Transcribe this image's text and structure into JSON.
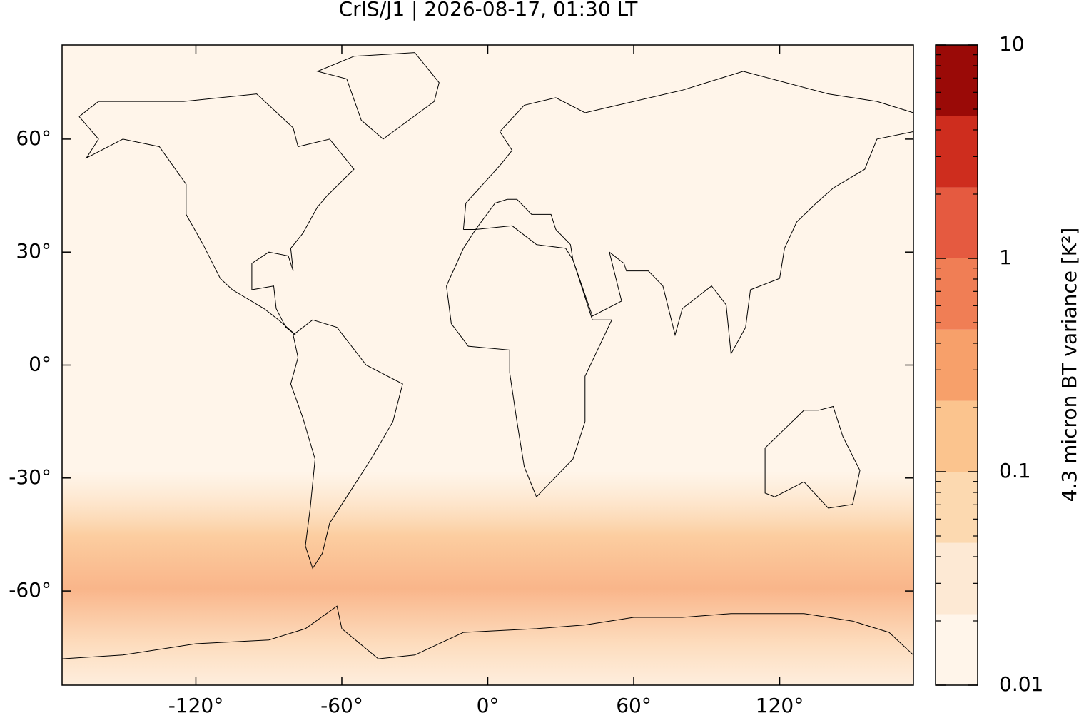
{
  "chart_data": {
    "type": "map",
    "title": "CrIS/J1 | 2026-08-17, 01:30 LT",
    "xlim": [
      -175,
      175
    ],
    "ylim": [
      -85,
      85
    ],
    "xticks": [
      {
        "value": -120,
        "label": "-120°"
      },
      {
        "value": -60,
        "label": "-60°"
      },
      {
        "value": 0,
        "label": "0°"
      },
      {
        "value": 60,
        "label": "60°"
      },
      {
        "value": 120,
        "label": "120°"
      }
    ],
    "yticks": [
      {
        "value": -60,
        "label": "-60°"
      },
      {
        "value": -30,
        "label": "-30°"
      },
      {
        "value": 0,
        "label": "0°"
      },
      {
        "value": 30,
        "label": "30°"
      },
      {
        "value": 60,
        "label": "60°"
      }
    ],
    "colorbar": {
      "label": "4.3 micron BT variance [K²]",
      "log": true,
      "lim": [
        0.01,
        10
      ],
      "levels": [
        0.01,
        0.0215,
        0.0464,
        0.1,
        0.215,
        0.464,
        1,
        2.15,
        4.64,
        10
      ],
      "colors": [
        "#fff5ea",
        "#fde9d4",
        "#fcd9b0",
        "#fbc48e",
        "#f7a06a",
        "#f07e55",
        "#e55a40",
        "#ce2d1e",
        "#9a0a07"
      ],
      "ticks": [
        0.01,
        0.1,
        1,
        10
      ],
      "minor_ticks": [
        0.02,
        0.03,
        0.04,
        0.05,
        0.06,
        0.07,
        0.08,
        0.09,
        0.2,
        0.3,
        0.4,
        0.5,
        0.6,
        0.7,
        0.8,
        0.9,
        2,
        3,
        4,
        5,
        6,
        7,
        8,
        9
      ]
    }
  }
}
